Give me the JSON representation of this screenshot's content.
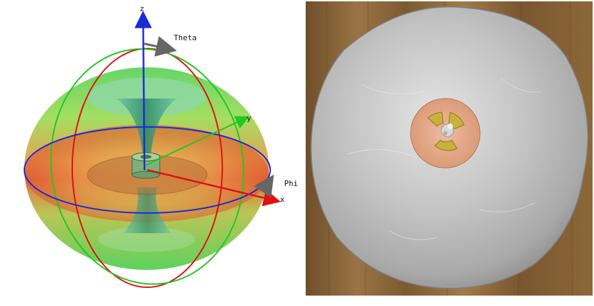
{
  "radiation_plot": {
    "axes": {
      "z_label": "z",
      "y_label": "y",
      "x_label": "x",
      "theta_label": "Theta",
      "phi_label": "Phi"
    },
    "colors": {
      "z_axis": "#1a2bd8",
      "y_axis": "#22c822",
      "x_axis": "#e01010",
      "theta_circle": "#e01010",
      "phi_circle": "#1a2bd8",
      "meridian_circle": "#22c822",
      "pattern_low": "#5fd35f",
      "pattern_high": "#e8562a",
      "ground_disc": "#b9733a",
      "angle_arrow": "#666666"
    }
  },
  "photo": {
    "subject": "metal-disc-antenna",
    "colors": {
      "wood": "#8a6638",
      "metal_disc": "#c9c9c9",
      "copper_pcb": "#e3a582",
      "antenna_gold": "#c8b23a"
    }
  }
}
